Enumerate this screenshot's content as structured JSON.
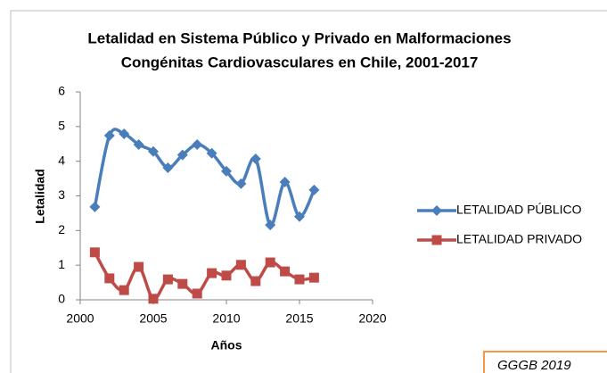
{
  "chart_data": {
    "type": "line",
    "title": [
      "Letalidad en Sistema Público y Privado en Malformaciones",
      "Congénitas Cardiovasculares en Chile, 2001-2017"
    ],
    "xlabel": "Años",
    "ylabel": "Letalidad",
    "x": [
      2001,
      2002,
      2003,
      2004,
      2005,
      2006,
      2007,
      2008,
      2009,
      2010,
      2011,
      2012,
      2013,
      2014,
      2015,
      2016
    ],
    "series": [
      {
        "name": "LETALIDAD PÚBLICO",
        "color": "#4a7ebb",
        "marker": "diamond",
        "values": [
          2.68,
          4.74,
          4.79,
          4.48,
          4.28,
          3.81,
          4.18,
          4.48,
          4.23,
          3.71,
          3.35,
          4.07,
          2.16,
          3.4,
          2.4,
          3.17
        ]
      },
      {
        "name": "LETALIDAD PRIVADO",
        "color": "#be4b48",
        "marker": "square",
        "values": [
          1.37,
          0.62,
          0.28,
          0.95,
          0.03,
          0.59,
          0.46,
          0.18,
          0.77,
          0.7,
          1.01,
          0.54,
          1.08,
          0.82,
          0.59,
          0.64
        ]
      }
    ],
    "xlim": [
      2000,
      2020
    ],
    "xticks": [
      2000,
      2005,
      2010,
      2015,
      2020
    ],
    "ylim": [
      0,
      6
    ],
    "yticks": [
      0,
      1,
      2,
      3,
      4,
      5,
      6
    ],
    "grid": false,
    "legend": "right",
    "smooth": true,
    "annotation": "GGGB 2019"
  }
}
